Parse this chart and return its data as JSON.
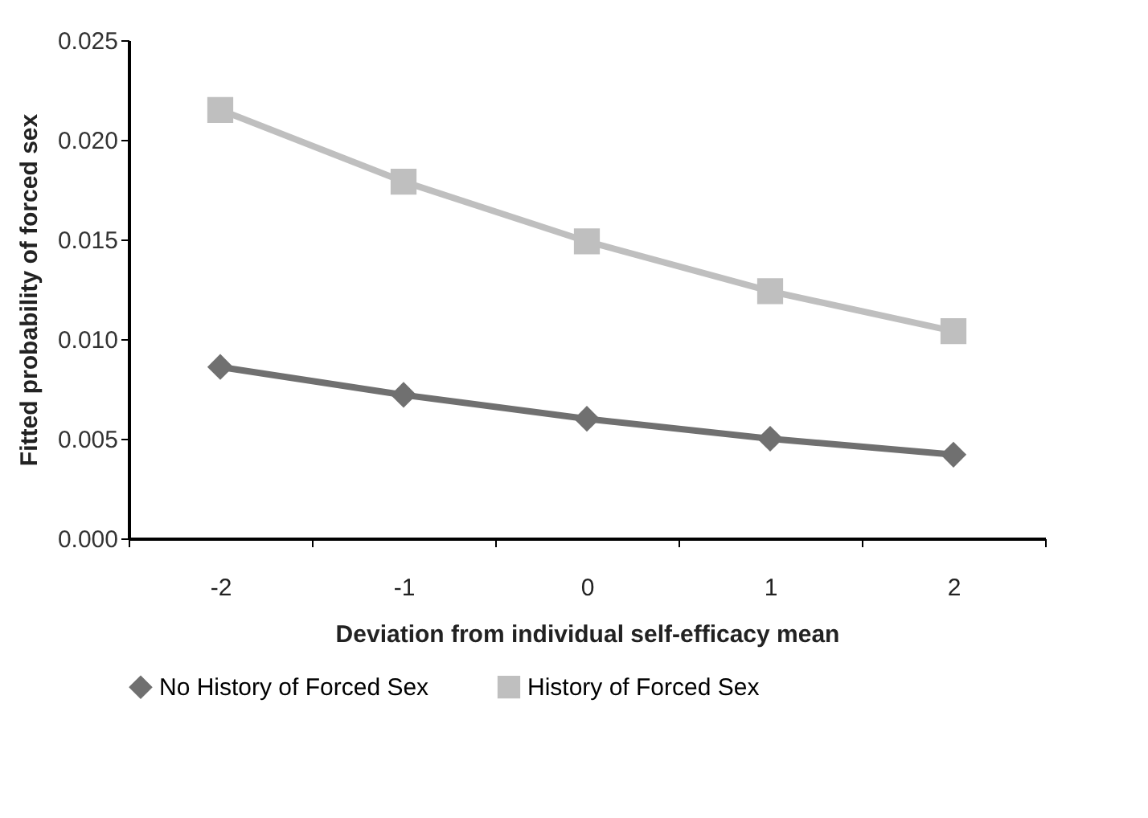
{
  "chart_data": {
    "type": "line",
    "xlabel": "Deviation from individual self-efficacy mean",
    "ylabel": "Fitted probability of forced sex",
    "categories": [
      "-2",
      "-1",
      "0",
      "1",
      "2"
    ],
    "series": [
      {
        "name": "No History of Forced Sex",
        "color": "#707070",
        "marker": "diamond",
        "values": [
          0.0086,
          0.0072,
          0.006,
          0.005,
          0.0042
        ]
      },
      {
        "name": "History of Forced Sex",
        "color": "#bfbfbf",
        "marker": "square",
        "values": [
          0.0215,
          0.0179,
          0.0149,
          0.0124,
          0.0104
        ]
      }
    ],
    "ylim": [
      0,
      0.025
    ],
    "yticks": [
      {
        "value": 0,
        "label": "0.000"
      },
      0.005,
      {
        "value": 0.01,
        "label": "0.010"
      },
      0.015,
      {
        "value": 0.02,
        "label": "0.020"
      },
      0.025
    ],
    "grid": false,
    "legend": "bottom"
  }
}
